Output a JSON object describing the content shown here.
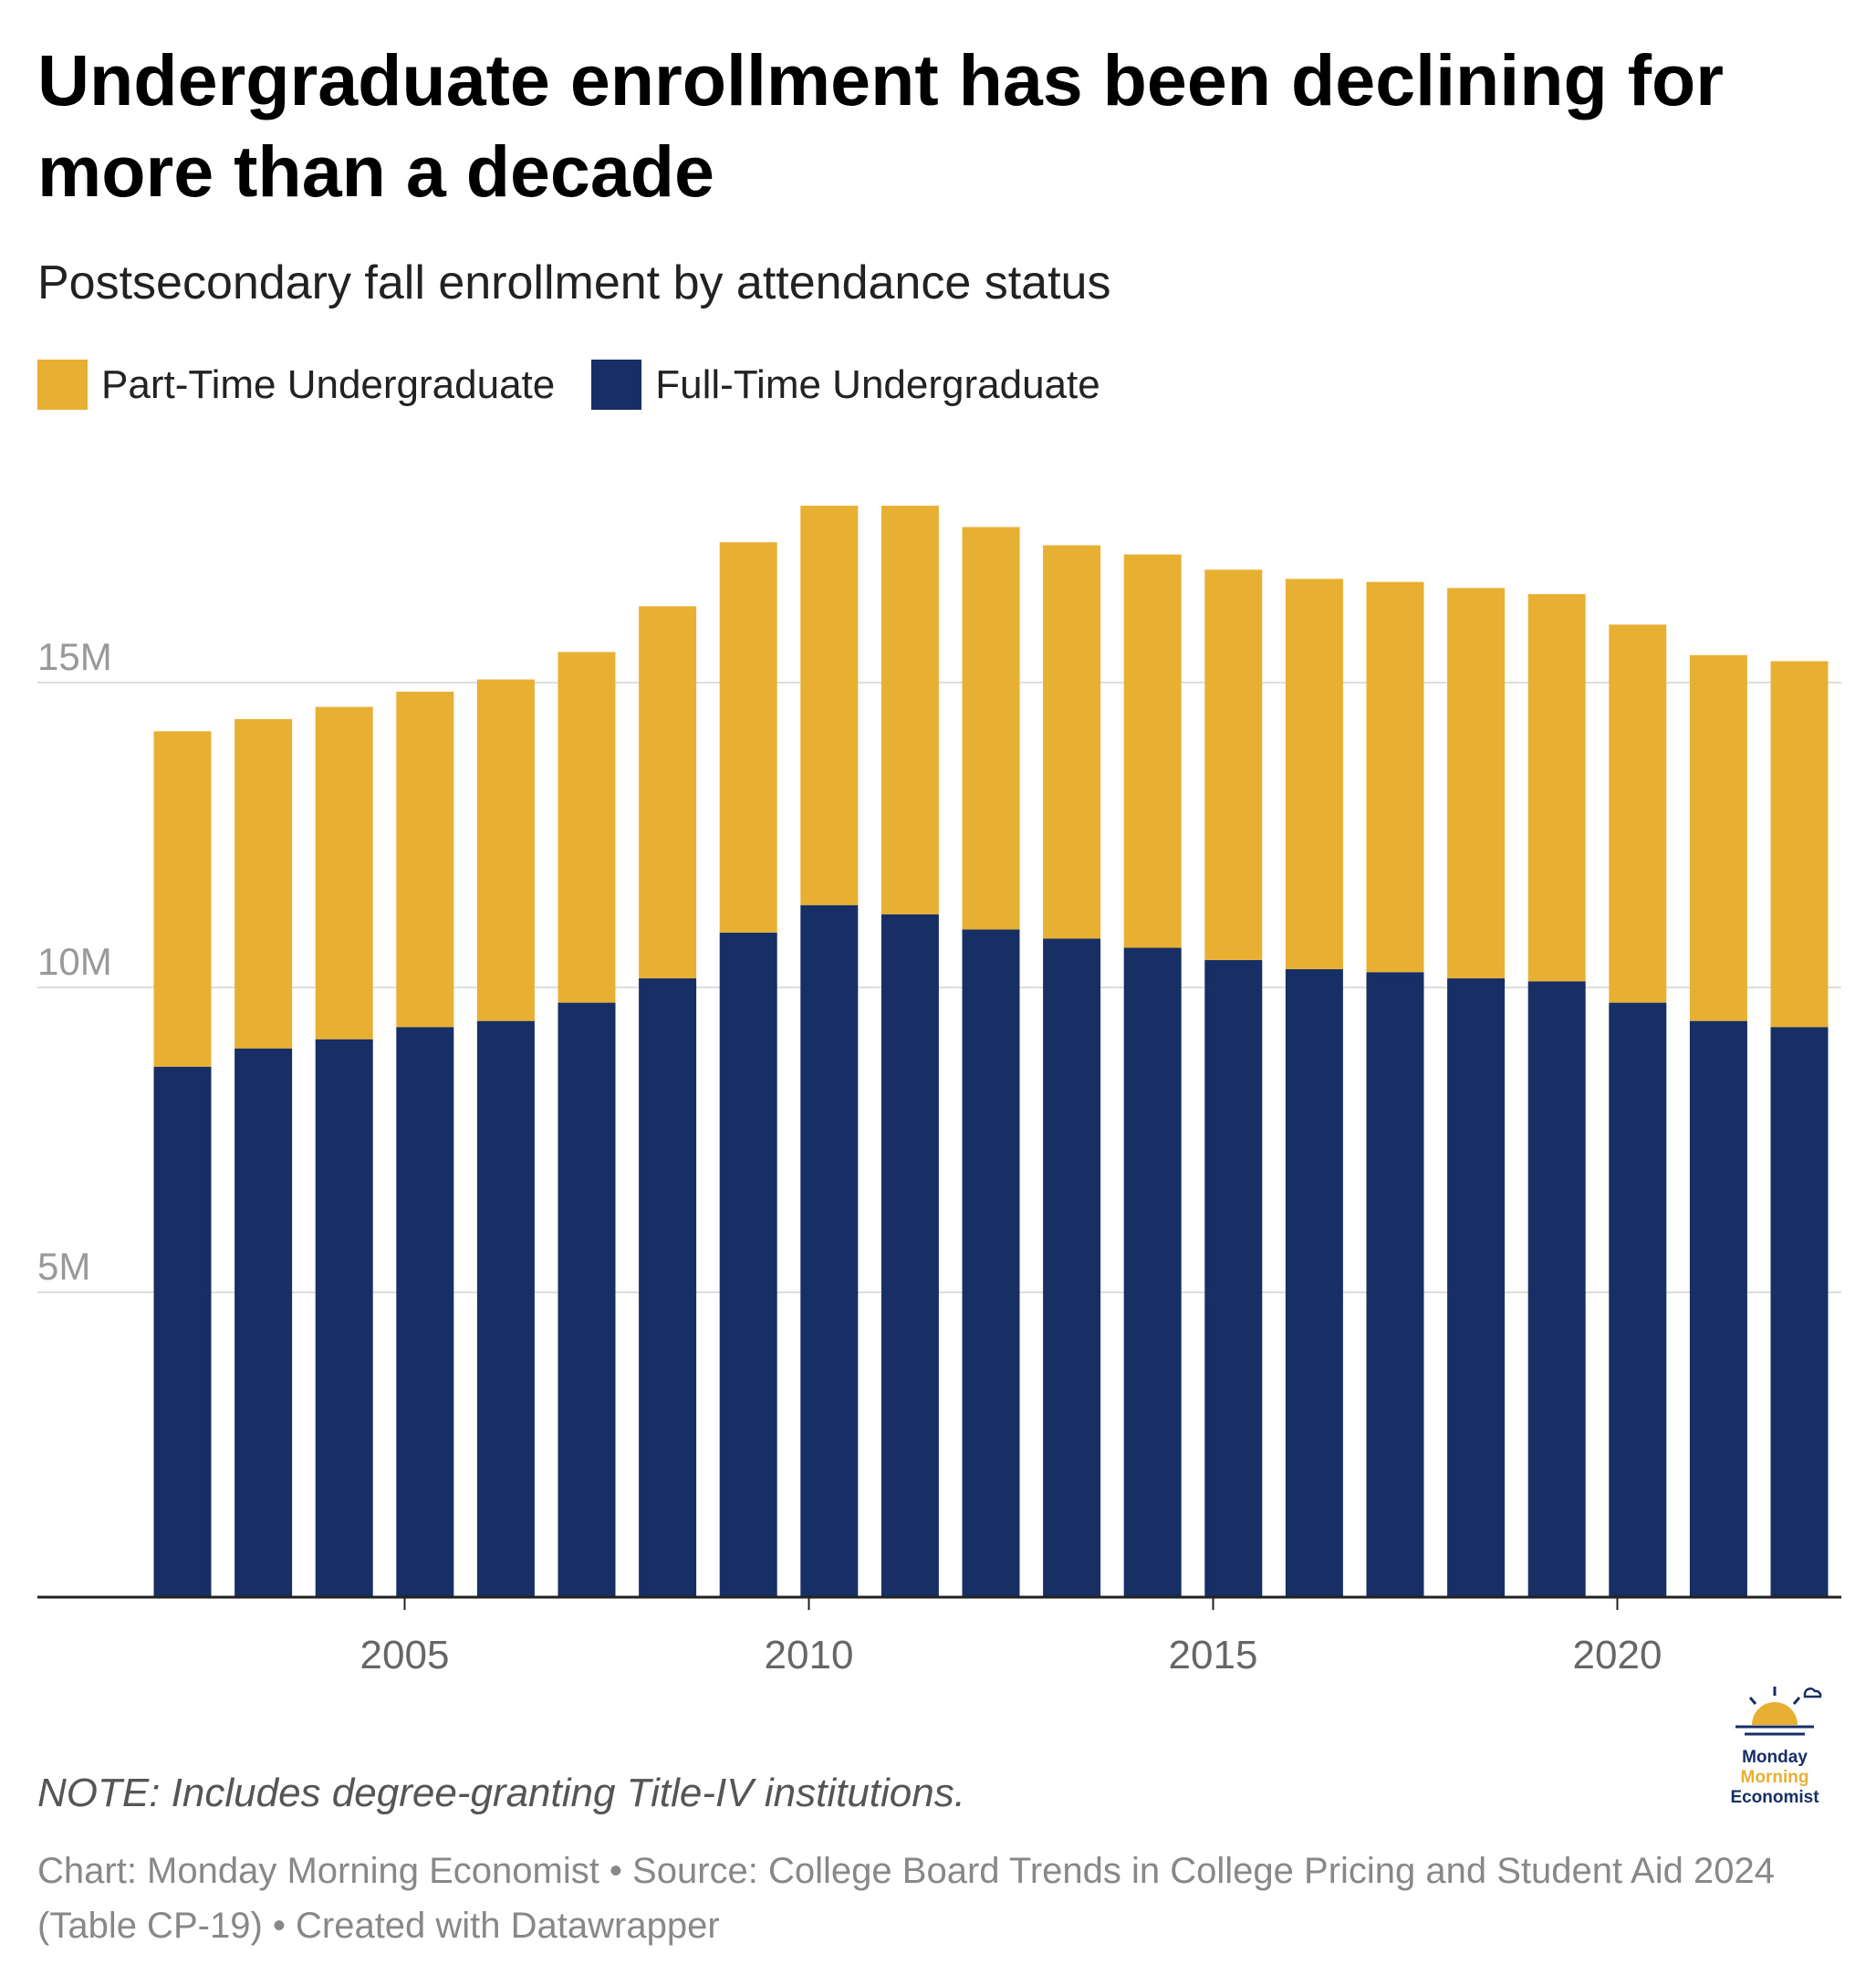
{
  "title": "Undergraduate enrollment has been declining for more than a decade",
  "subtitle": "Postsecondary fall enrollment by attendance status",
  "legend": [
    {
      "label": "Part-Time Undergraduate",
      "color": "#E8B033"
    },
    {
      "label": "Full-Time Undergraduate",
      "color": "#182F66"
    }
  ],
  "note": "NOTE: Includes degree-granting Title-IV institutions.",
  "footer": "Chart: Monday Morning Economist • Source: College Board Trends in College Pricing and Student Aid 2024 (Table CP-19) • Created with Datawrapper",
  "logo": {
    "line1": "Monday",
    "line2": "Morning",
    "line3": "Economist",
    "icon": "sun-icon"
  },
  "chart_data": {
    "type": "bar",
    "stacked": true,
    "x": [
      2002,
      2003,
      2004,
      2005,
      2006,
      2007,
      2008,
      2009,
      2010,
      2011,
      2012,
      2013,
      2014,
      2015,
      2016,
      2017,
      2018,
      2019,
      2020,
      2021,
      2022
    ],
    "series": [
      {
        "name": "Full-Time Undergraduate",
        "color": "#182F66",
        "values": [
          8.7,
          9.0,
          9.15,
          9.35,
          9.45,
          9.75,
          10.15,
          10.9,
          11.35,
          11.2,
          10.95,
          10.8,
          10.65,
          10.45,
          10.3,
          10.25,
          10.15,
          10.1,
          9.75,
          9.45,
          9.35
        ]
      },
      {
        "name": "Part-Time Undergraduate",
        "color": "#E8B033",
        "values": [
          5.5,
          5.4,
          5.45,
          5.5,
          5.6,
          5.75,
          6.1,
          6.4,
          6.55,
          6.7,
          6.6,
          6.45,
          6.45,
          6.4,
          6.4,
          6.4,
          6.4,
          6.35,
          6.2,
          6.0,
          6.0
        ]
      }
    ],
    "yticks": [
      {
        "value": 5,
        "label": "5M"
      },
      {
        "value": 10,
        "label": "10M"
      },
      {
        "value": 15,
        "label": "15M"
      }
    ],
    "xticks": [
      2005,
      2010,
      2015,
      2020
    ],
    "xlabel": "",
    "ylabel": "",
    "ylim": [
      0,
      18.5
    ],
    "units": "millions",
    "grid": true
  }
}
